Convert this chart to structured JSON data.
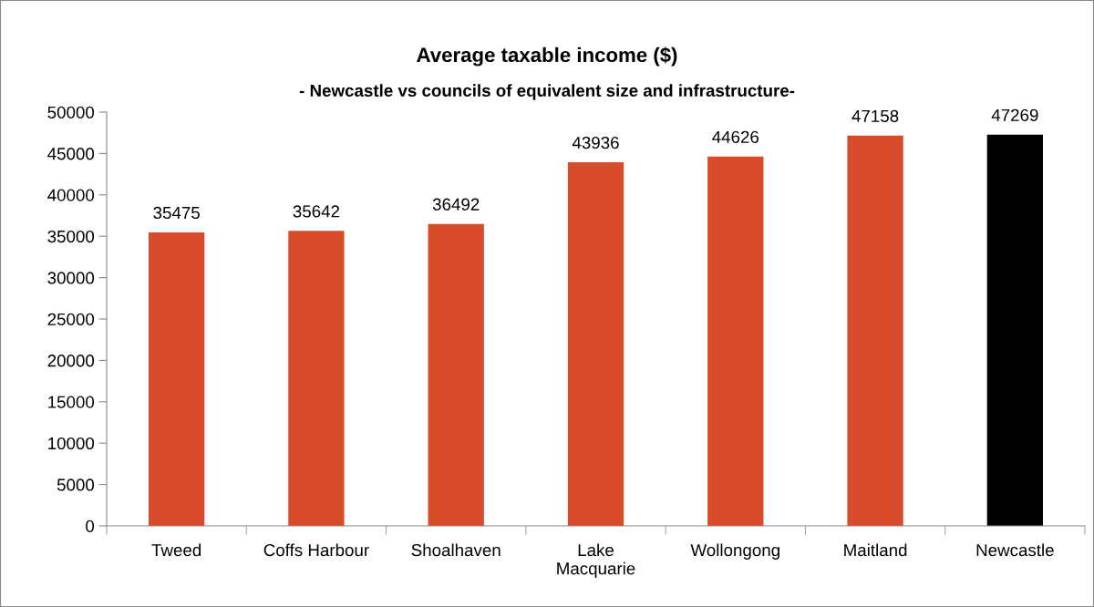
{
  "chart_data": {
    "type": "bar",
    "title": "Average taxable income ($)",
    "subtitle": "- Newcastle vs councils of equivalent size and infrastructure-",
    "categories": [
      "Tweed",
      "Coffs Harbour",
      "Shoalhaven",
      "Lake\nMacquarie",
      "Wollongong",
      "Maitland",
      "Newcastle"
    ],
    "values": [
      35475,
      35642,
      36492,
      43936,
      44626,
      47158,
      47269
    ],
    "colors": [
      "#d84b2a",
      "#d84b2a",
      "#d84b2a",
      "#d84b2a",
      "#d84b2a",
      "#d84b2a",
      "#000000"
    ],
    "ylim": [
      0,
      50000
    ],
    "yticks": [
      0,
      5000,
      10000,
      15000,
      20000,
      25000,
      30000,
      35000,
      40000,
      45000,
      50000
    ],
    "grid": false,
    "legend": false,
    "data_labels": true
  }
}
